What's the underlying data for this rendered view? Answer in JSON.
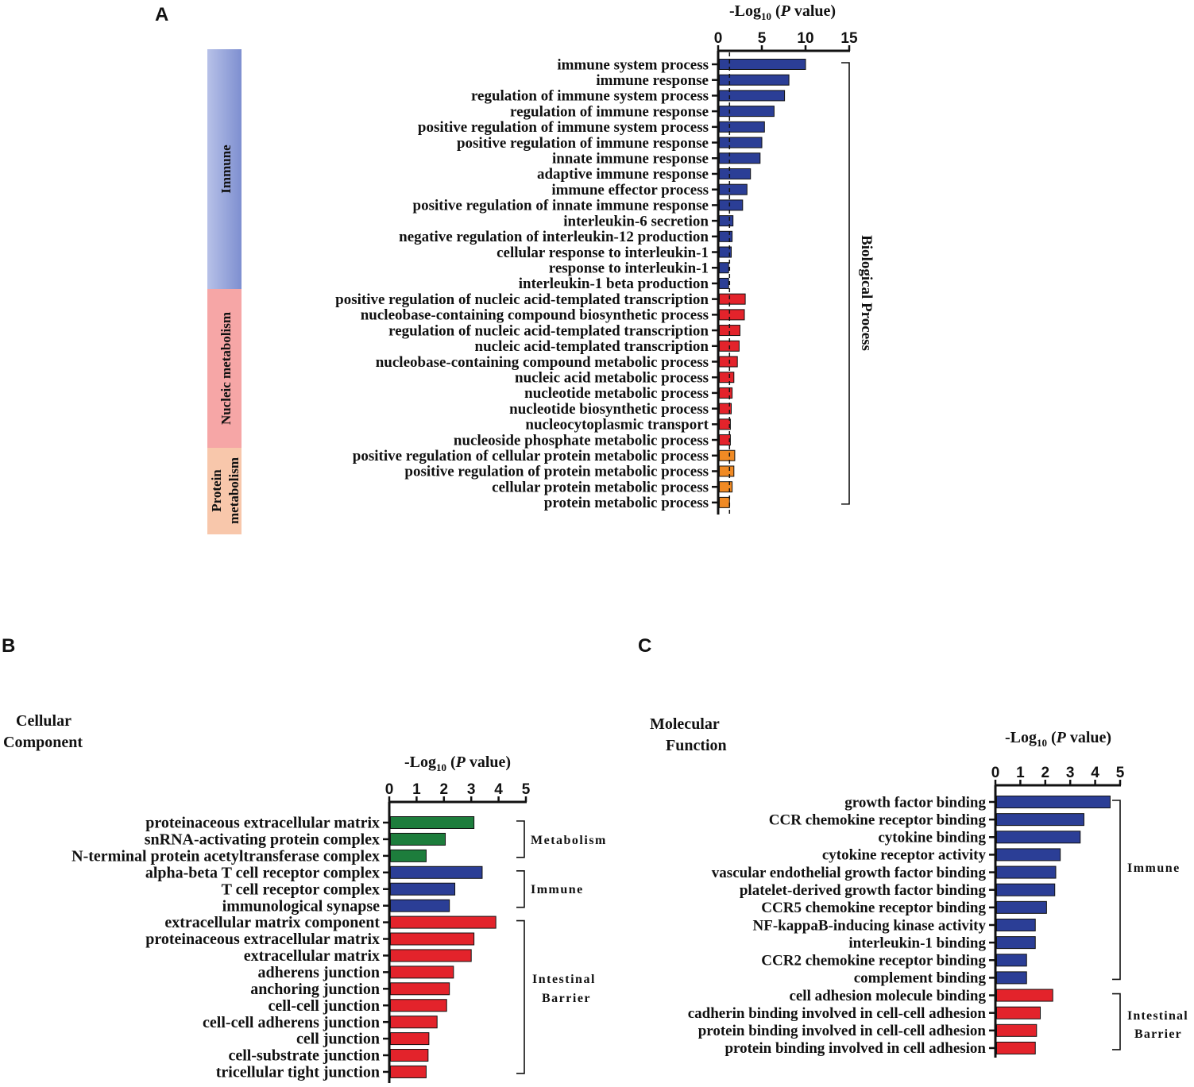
{
  "panel_letters": {
    "a": "A",
    "b": "B",
    "c": "C"
  },
  "colors": {
    "blue": "#2b3e96",
    "red": "#e3232b",
    "orange": "#f08a24",
    "green": "#1d7d3c",
    "axis": "#111111",
    "immune_band_top": "#b7c1e8",
    "immune_band_bottom": "#7e8fd0",
    "nucleic_band": "#f6a6a6",
    "protein_band": "#f8c7ab"
  },
  "chart_data": [
    {
      "id": "A",
      "type": "bar",
      "orientation": "horizontal",
      "title_parts": {
        "prefix": "-Log",
        "sub": "10",
        "mid": " (",
        "italic": "P",
        "suffix": " value)"
      },
      "xlim": [
        0,
        15
      ],
      "xticks": [
        0,
        5,
        10,
        15
      ],
      "dashed_reference": 1.3,
      "side_label": "Biological Process",
      "categories": [
        "immune system process",
        "immune response",
        "regulation of immune system process",
        "regulation of immune response",
        "positive regulation of immune system process",
        "positive regulation of immune response",
        "innate immune response",
        "adaptive immune response",
        "immune effector process",
        "positive regulation of innate immune response",
        "interleukin-6 secretion",
        "negative regulation of interleukin-12 production",
        "cellular response to interleukin-1",
        "response to interleukin-1",
        "interleukin-1 beta production",
        "positive regulation of nucleic acid-templated transcription",
        "nucleobase-containing compound biosynthetic process",
        "regulation of nucleic acid-templated transcription",
        "nucleic acid-templated transcription",
        "nucleobase-containing compound metabolic process",
        "nucleic acid metabolic process",
        "nucleotide metabolic process",
        "nucleotide biosynthetic process",
        "nucleocytoplasmic transport",
        "nucleoside phosphate metabolic process",
        "positive regulation of cellular protein metabolic process",
        "positive regulation of protein metabolic process",
        "cellular protein metabolic process",
        "protein metabolic process"
      ],
      "values": [
        10.0,
        8.1,
        7.6,
        6.4,
        5.3,
        5.0,
        4.8,
        3.7,
        3.3,
        2.8,
        1.7,
        1.6,
        1.5,
        1.2,
        1.2,
        3.1,
        3.0,
        2.5,
        2.4,
        2.2,
        1.8,
        1.6,
        1.5,
        1.4,
        1.4,
        1.9,
        1.8,
        1.6,
        1.3
      ],
      "groups": [
        {
          "name": "Immune",
          "start": 0,
          "end": 14,
          "color": "blue"
        },
        {
          "name": "Nucleic metabolism",
          "start": 15,
          "end": 24,
          "color": "red"
        },
        {
          "name": "Protein metabolism",
          "start": 25,
          "end": 28,
          "color": "orange"
        }
      ],
      "group_label_lines": {
        "immune": "Immune",
        "nucleic": "Nucleic metabolism",
        "protein_1": "Protein",
        "protein_2": "metabolism"
      }
    },
    {
      "id": "B",
      "type": "bar",
      "orientation": "horizontal",
      "title_parts": {
        "prefix": "-Log",
        "sub": "10",
        "mid": " (",
        "italic": "P",
        "suffix": " value)"
      },
      "heading": [
        "Cellular",
        "Component"
      ],
      "xlim": [
        0,
        5
      ],
      "xticks": [
        0,
        1,
        2,
        3,
        4,
        5
      ],
      "categories": [
        "proteinaceous extracellular matrix",
        "snRNA-activating protein complex",
        "N-terminal protein acetyltransferase complex",
        "alpha-beta T cell receptor complex",
        "T cell receptor complex",
        "immunological synapse",
        "extracellular matrix component",
        "proteinaceous extracellular matrix",
        "extracellular matrix",
        "adherens junction",
        "anchoring junction",
        "cell-cell junction",
        "cell-cell adherens junction",
        "cell junction",
        "cell-substrate junction",
        "tricellular tight junction"
      ],
      "values": [
        3.1,
        2.05,
        1.35,
        3.4,
        2.4,
        2.2,
        3.9,
        3.1,
        3.0,
        2.35,
        2.2,
        2.1,
        1.75,
        1.45,
        1.42,
        1.35
      ],
      "groups": [
        {
          "name": "Metabolism",
          "start": 0,
          "end": 2,
          "color": "green"
        },
        {
          "name": "Immune",
          "start": 3,
          "end": 5,
          "color": "blue"
        },
        {
          "name": "Intestinal Barrier",
          "start": 6,
          "end": 15,
          "color": "red"
        }
      ],
      "group_label_lines": {
        "metabolism": "Metabolism",
        "immune": "Immune",
        "barrier_1": "Intestinal",
        "barrier_2": "Barrier"
      }
    },
    {
      "id": "C",
      "type": "bar",
      "orientation": "horizontal",
      "title_parts": {
        "prefix": "-Log",
        "sub": "10",
        "mid": " (",
        "italic": "P",
        "suffix": " value)"
      },
      "heading": [
        "Molecular",
        "Function"
      ],
      "xlim": [
        0,
        5
      ],
      "xticks": [
        0,
        1,
        2,
        3,
        4,
        5
      ],
      "categories": [
        "growth factor binding",
        "CCR chemokine receptor binding",
        "cytokine binding",
        "cytokine receptor activity",
        "vascular endothelial growth factor binding",
        "platelet-derived growth factor binding",
        "CCR5 chemokine receptor binding",
        "NF-kappaB-inducing kinase activity",
        "interleukin-1 binding",
        "CCR2 chemokine receptor binding",
        "complement binding",
        "cell adhesion molecule binding",
        "cadherin binding involved in cell-cell adhesion",
        "protein binding involved in cell-cell adhesion",
        "protein binding involved in cell adhesion"
      ],
      "values": [
        4.6,
        3.55,
        3.4,
        2.6,
        2.42,
        2.38,
        2.05,
        1.6,
        1.6,
        1.25,
        1.25,
        2.3,
        1.8,
        1.65,
        1.6
      ],
      "groups": [
        {
          "name": "Immune",
          "start": 0,
          "end": 10,
          "color": "blue"
        },
        {
          "name": "Intestinal Barrier",
          "start": 11,
          "end": 14,
          "color": "red"
        }
      ],
      "group_label_lines": {
        "immune": "Immune",
        "barrier_1": "Intestinal",
        "barrier_2": "Barrier"
      }
    }
  ]
}
